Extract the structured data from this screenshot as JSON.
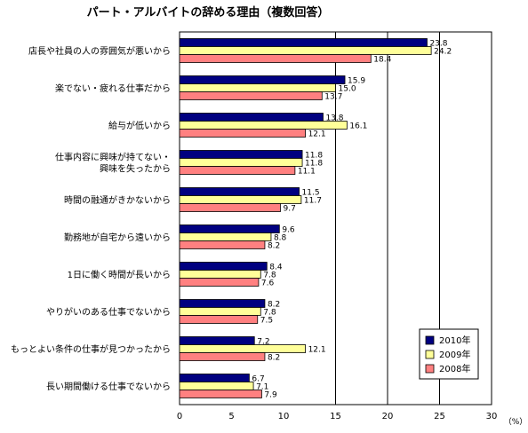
{
  "chart_data": {
    "type": "bar",
    "orientation": "horizontal",
    "title": "パート・アルバイトの辞める理由（複数回答）",
    "unit": "（%）",
    "xlim": [
      0,
      30
    ],
    "xticks": [
      0,
      5,
      10,
      15,
      20,
      25,
      30
    ],
    "grid": "vertical major gridlines at 15, 20, 25",
    "legend_position": "bottom-right",
    "categories": [
      "店長や社員の人の雰囲気が悪いから",
      "楽でない・疲れる仕事だから",
      "給与が低いから",
      "仕事内容に興味が持てない・興味を失ったから",
      "時間の融通がきかないから",
      "勤務地が自宅から遠いから",
      "1日に働く時間が長いから",
      "やりがいのある仕事でないから",
      "もっとよい条件の仕事が見つかったから",
      "長い期間働ける仕事でないから"
    ],
    "category_lines": [
      [
        "店長や社員の人の雰囲気が悪いから"
      ],
      [
        "楽でない・疲れる仕事だから"
      ],
      [
        "給与が低いから"
      ],
      [
        "仕事内容に興味が持てない・",
        "興味を失ったから"
      ],
      [
        "時間の融通がきかないから"
      ],
      [
        "勤務地が自宅から遠いから"
      ],
      [
        "1日に働く時間が長いから"
      ],
      [
        "やりがいのある仕事でないから"
      ],
      [
        "もっとよい条件の仕事が見つかったから"
      ],
      [
        "長い期間働ける仕事でないから"
      ]
    ],
    "series": [
      {
        "name": "2010年",
        "color": "#000080",
        "values": [
          23.8,
          15.9,
          13.8,
          11.8,
          11.5,
          9.6,
          8.4,
          8.2,
          7.2,
          6.7
        ]
      },
      {
        "name": "2009年",
        "color": "#ffff99",
        "values": [
          24.2,
          15.0,
          16.1,
          11.8,
          11.7,
          8.8,
          7.8,
          7.8,
          12.1,
          7.1
        ]
      },
      {
        "name": "2008年",
        "color": "#ff8080",
        "values": [
          18.4,
          13.7,
          12.1,
          11.1,
          9.7,
          8.2,
          7.6,
          7.5,
          8.2,
          7.9
        ]
      }
    ]
  }
}
